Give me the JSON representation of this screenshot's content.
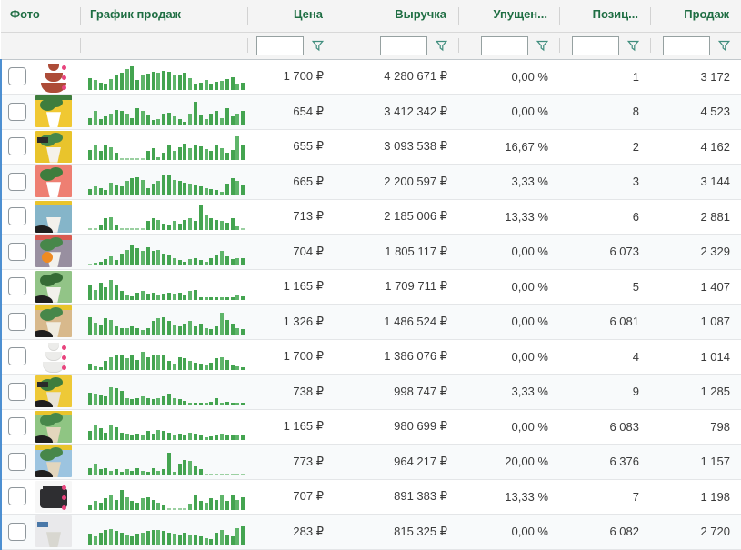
{
  "colors": {
    "header_text": "#1f6e43",
    "funnel_icon": "#3f8d7d",
    "bar_green": "#44a450",
    "bar_green_light": "#5fb56a",
    "bar_zero_dash": "#9bd0a1",
    "row_accent_strip": "#4d8fd1",
    "currency_symbol": "₽"
  },
  "table": {
    "columns": [
      {
        "label": "Фото"
      },
      {
        "label": "График продаж"
      },
      {
        "label": "Цена"
      },
      {
        "label": "Выручка"
      },
      {
        "label": "Упущен..."
      },
      {
        "label": "Позиц..."
      },
      {
        "label": "Продаж"
      }
    ],
    "filter_inputs": [
      "price",
      "revenue",
      "missed",
      "position",
      "sales"
    ]
  },
  "rows": [
    {
      "price": "1 700 ₽",
      "revenue": "4 280 671 ₽",
      "missed": "0,00 %",
      "position": "1",
      "sales": "3 172",
      "photo": {
        "bg": "#ffffff",
        "kind": "tiered",
        "tier": "#ad4c38",
        "dots": "#e8457e"
      },
      "bars": [
        42,
        35,
        28,
        24,
        40,
        52,
        62,
        78,
        88,
        38,
        52,
        60,
        68,
        64,
        70,
        66,
        54,
        58,
        64,
        44,
        24,
        26,
        38,
        22,
        30,
        32,
        40,
        46,
        24,
        28
      ]
    },
    {
      "price": "654 ₽",
      "revenue": "3 412 342 ₽",
      "missed": "0,00 %",
      "position": "8",
      "sales": "4 523",
      "photo": {
        "bg": "#f0c832",
        "strip": "#3e7d3d",
        "plant": "#3e7d3d",
        "pot": "#ffffff"
      },
      "bars": [
        28,
        52,
        24,
        34,
        44,
        58,
        52,
        44,
        28,
        62,
        52,
        38,
        20,
        24,
        44,
        48,
        34,
        24,
        14,
        44,
        88,
        38,
        24,
        44,
        52,
        28,
        62,
        34,
        44,
        52
      ]
    },
    {
      "price": "655 ₽",
      "revenue": "3 093 538 ₽",
      "missed": "16,67 %",
      "position": "2",
      "sales": "4 162",
      "photo": {
        "bg": "#e9c42c",
        "plant": "#47874a",
        "pot": "#f5f2ea",
        "tag": "#2a2a2a"
      },
      "bars": [
        38,
        52,
        34,
        58,
        46,
        28,
        0,
        0,
        0,
        0,
        0,
        34,
        44,
        6,
        28,
        52,
        34,
        48,
        60,
        44,
        52,
        50,
        40,
        34,
        52,
        44,
        28,
        38,
        88,
        58
      ]
    },
    {
      "price": "665 ₽",
      "revenue": "2 200 597 ₽",
      "missed": "3,33 %",
      "position": "3",
      "sales": "3 144",
      "photo": {
        "bg": "#ee7f72",
        "plant": "#3e7d3d",
        "pot": "#ffffff"
      },
      "bars": [
        24,
        34,
        28,
        20,
        48,
        38,
        34,
        52,
        62,
        68,
        58,
        28,
        44,
        52,
        72,
        78,
        58,
        52,
        48,
        44,
        38,
        34,
        28,
        24,
        20,
        14,
        44,
        62,
        52,
        38
      ]
    },
    {
      "price": "713 ₽",
      "revenue": "2 185 006 ₽",
      "missed": "13,33 %",
      "position": "6",
      "sales": "2 881",
      "photo": {
        "bg": "#85b5c9",
        "strip": "#e9c42c",
        "pot": "#f2f1ec",
        "blob": "#1e1e1e"
      },
      "bars": [
        0,
        0,
        18,
        44,
        48,
        20,
        0,
        0,
        0,
        0,
        0,
        34,
        44,
        38,
        24,
        20,
        34,
        24,
        38,
        44,
        34,
        92,
        58,
        44,
        38,
        34,
        28,
        44,
        14,
        0
      ]
    },
    {
      "price": "704 ₽",
      "revenue": "1 805 117 ₽",
      "missed": "0,00 %",
      "position": "6 073",
      "sales": "2 329",
      "photo": {
        "bg": "#988fa0",
        "strip": "#d85a50",
        "plant": "#47874a",
        "pot": "#f2f1ec",
        "badge": "#ef8b22"
      },
      "bars": [
        0,
        10,
        12,
        24,
        34,
        20,
        44,
        58,
        72,
        62,
        52,
        68,
        52,
        58,
        44,
        38,
        28,
        20,
        14,
        24,
        28,
        20,
        14,
        28,
        38,
        52,
        34,
        24,
        28,
        26
      ]
    },
    {
      "price": "1 165 ₽",
      "revenue": "1 709 711 ₽",
      "missed": "0,00 %",
      "position": "5",
      "sales": "1 407",
      "photo": {
        "bg": "#92c487",
        "plant": "#356b35",
        "pot": "#f2f1ec",
        "blob": "#1e1e1e"
      },
      "bars": [
        52,
        38,
        62,
        48,
        72,
        58,
        34,
        20,
        14,
        28,
        34,
        24,
        28,
        20,
        24,
        28,
        22,
        26,
        20,
        34,
        38,
        8,
        6,
        6,
        6,
        8,
        6,
        10,
        16,
        12
      ]
    },
    {
      "price": "1 326 ₽",
      "revenue": "1 486 524 ₽",
      "missed": "0,00 %",
      "position": "6 081",
      "sales": "1 087",
      "photo": {
        "bg": "#d8b98c",
        "strip": "#e9c42c",
        "plant": "#47874a",
        "pot": "#f0ece0",
        "blob": "#1e1e1e"
      },
      "bars": [
        68,
        48,
        38,
        62,
        58,
        34,
        28,
        26,
        34,
        28,
        20,
        28,
        52,
        62,
        68,
        52,
        38,
        34,
        44,
        52,
        34,
        44,
        28,
        24,
        34,
        82,
        58,
        44,
        28,
        24
      ]
    },
    {
      "price": "1 700 ₽",
      "revenue": "1 386 076 ₽",
      "missed": "0,00 %",
      "position": "4",
      "sales": "1 014",
      "photo": {
        "bg": "#ffffff",
        "kind": "stacked",
        "tier": "#ececea",
        "dots": "#e8457e"
      },
      "bars": [
        24,
        14,
        10,
        34,
        48,
        58,
        52,
        44,
        52,
        38,
        68,
        48,
        52,
        58,
        52,
        34,
        24,
        48,
        44,
        34,
        26,
        24,
        20,
        28,
        44,
        48,
        38,
        20,
        14,
        8
      ]
    },
    {
      "price": "738 ₽",
      "revenue": "998 747 ₽",
      "missed": "3,33 %",
      "position": "9",
      "sales": "1 285",
      "photo": {
        "bg": "#eec937",
        "plant": "#3e7d3d",
        "pot": "#e9e4d6",
        "blob": "#1e1e1e",
        "tag": "#2a2a2a"
      },
      "bars": [
        48,
        44,
        38,
        34,
        68,
        62,
        52,
        28,
        24,
        28,
        34,
        26,
        24,
        28,
        34,
        44,
        28,
        24,
        16,
        10,
        8,
        10,
        8,
        14,
        28,
        10,
        14,
        8,
        10,
        6
      ]
    },
    {
      "price": "1 165 ₽",
      "revenue": "980 699 ₽",
      "missed": "0,00 %",
      "position": "6 083",
      "sales": "798",
      "photo": {
        "bg": "#8fc583",
        "strip": "#e9c42c",
        "plant": "#47874a",
        "pot": "#e3d6bd",
        "blob": "#1e1e1e"
      },
      "bars": [
        34,
        58,
        44,
        28,
        52,
        48,
        26,
        24,
        20,
        24,
        18,
        34,
        24,
        38,
        34,
        26,
        18,
        24,
        16,
        26,
        24,
        18,
        8,
        14,
        18,
        24,
        16,
        18,
        20,
        16
      ]
    },
    {
      "price": "773 ₽",
      "revenue": "964 217 ₽",
      "missed": "20,00 %",
      "position": "6 376",
      "sales": "1 157",
      "photo": {
        "bg": "#9cc4e0",
        "strip": "#e9c42c",
        "plant": "#47874a",
        "pot": "#e3d6bd",
        "blob": "#1e1e1e"
      },
      "bars": [
        28,
        44,
        24,
        28,
        18,
        24,
        14,
        24,
        16,
        26,
        18,
        14,
        28,
        18,
        24,
        82,
        14,
        44,
        58,
        52,
        34,
        24,
        0,
        0,
        0,
        0,
        0,
        0,
        0,
        0
      ]
    },
    {
      "price": "707 ₽",
      "revenue": "891 383 ₽",
      "missed": "13,33 %",
      "position": "7",
      "sales": "1 198",
      "photo": {
        "bg": "#f7f7f7",
        "kind": "box",
        "tier": "#2e2e31",
        "dots": "#e8457e"
      },
      "bars": [
        18,
        34,
        26,
        44,
        52,
        38,
        72,
        48,
        34,
        26,
        44,
        48,
        36,
        28,
        20,
        0,
        0,
        0,
        0,
        24,
        52,
        34,
        28,
        44,
        38,
        52,
        34,
        58,
        38,
        48
      ]
    },
    {
      "price": "283 ₽",
      "revenue": "815 325 ₽",
      "missed": "0,00 %",
      "position": "6 082",
      "sales": "2 720",
      "photo": {
        "bg": "#e9e9eb",
        "pot": "#d8d7d0",
        "tag": "#4a78a8"
      },
      "bars": [
        44,
        34,
        48,
        58,
        60,
        54,
        46,
        38,
        34,
        44,
        46,
        54,
        58,
        56,
        54,
        48,
        44,
        38,
        46,
        40,
        36,
        34,
        28,
        24,
        48,
        58,
        38,
        34,
        62,
        70
      ]
    }
  ]
}
